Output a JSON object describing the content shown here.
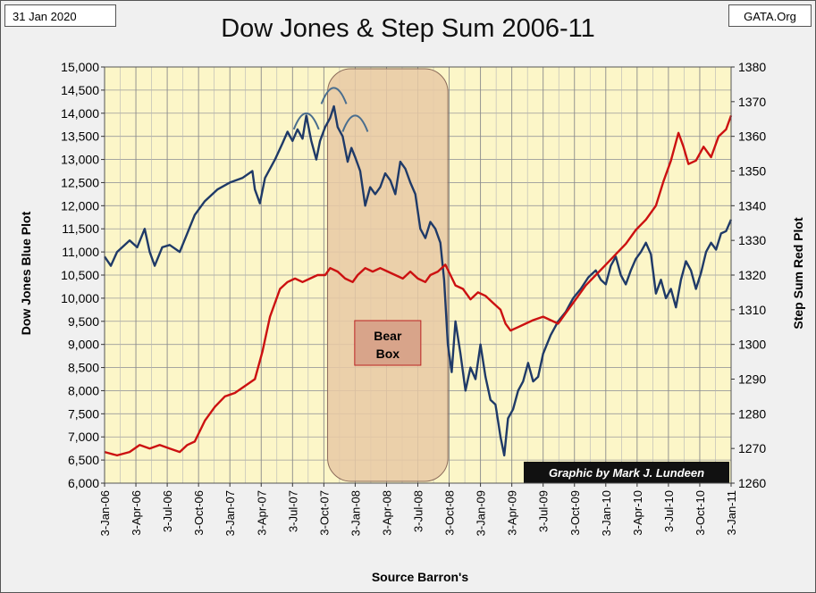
{
  "header": {
    "date": "31 Jan 2020",
    "site": "GATA.Org"
  },
  "chart_data": {
    "type": "line",
    "title": "Dow Jones & Step Sum 2006-11",
    "xlabel": "Source Barron's",
    "ylabel_left": "Dow Jones  Blue Plot",
    "ylabel_right": "Step Sum  Red Plot",
    "x_tick_labels": [
      "3-Jan-06",
      "3-Apr-06",
      "3-Jul-06",
      "3-Oct-06",
      "3-Jan-07",
      "3-Apr-07",
      "3-Jul-07",
      "3-Oct-07",
      "3-Jan-08",
      "3-Apr-08",
      "3-Jul-08",
      "3-Oct-08",
      "3-Jan-09",
      "3-Apr-09",
      "3-Jul-09",
      "3-Oct-09",
      "3-Jan-10",
      "3-Apr-10",
      "3-Jul-10",
      "3-Oct-10",
      "3-Jan-11"
    ],
    "ylim_left": [
      6000,
      15000
    ],
    "ylim_right": [
      1260,
      1380
    ],
    "left_ticks": [
      6000,
      6500,
      7000,
      7500,
      8000,
      8500,
      9000,
      9500,
      10000,
      10500,
      11000,
      11500,
      12000,
      12500,
      13000,
      13500,
      14000,
      14500,
      15000
    ],
    "left_tick_labels": [
      "6,000",
      "6,500",
      "7,000",
      "7,500",
      "8,000",
      "8,500",
      "9,000",
      "9,500",
      "10,000",
      "10,500",
      "11,000",
      "11,500",
      "12,000",
      "12,500",
      "13,000",
      "13,500",
      "14,000",
      "14,500",
      "15,000"
    ],
    "right_ticks": [
      1260,
      1270,
      1280,
      1290,
      1300,
      1310,
      1320,
      1330,
      1340,
      1350,
      1360,
      1370,
      1380
    ],
    "grid": true,
    "colors": {
      "dow": "#1f3a68",
      "stepsum": "#cc1111",
      "plot_bg": "#fcf6c8",
      "bear_box": "#e8c9a4"
    },
    "series": [
      {
        "name": "Dow Jones",
        "axis": "left",
        "points": [
          [
            0,
            10900
          ],
          [
            0.25,
            10700
          ],
          [
            0.5,
            11000
          ],
          [
            1,
            11250
          ],
          [
            1.3,
            11100
          ],
          [
            1.6,
            11500
          ],
          [
            1.8,
            11000
          ],
          [
            2,
            10700
          ],
          [
            2.3,
            11100
          ],
          [
            2.6,
            11150
          ],
          [
            3,
            11000
          ],
          [
            3.3,
            11400
          ],
          [
            3.6,
            11800
          ],
          [
            4,
            12100
          ],
          [
            4.5,
            12350
          ],
          [
            5,
            12500
          ],
          [
            5.5,
            12600
          ],
          [
            5.9,
            12750
          ],
          [
            6,
            12350
          ],
          [
            6.2,
            12050
          ],
          [
            6.4,
            12600
          ],
          [
            6.8,
            13000
          ],
          [
            7.1,
            13350
          ],
          [
            7.3,
            13600
          ],
          [
            7.5,
            13400
          ],
          [
            7.7,
            13650
          ],
          [
            7.9,
            13450
          ],
          [
            8.05,
            13950
          ],
          [
            8.25,
            13400
          ],
          [
            8.45,
            13000
          ],
          [
            8.6,
            13400
          ],
          [
            8.8,
            13700
          ],
          [
            9,
            13900
          ],
          [
            9.15,
            14150
          ],
          [
            9.3,
            13700
          ],
          [
            9.5,
            13500
          ],
          [
            9.7,
            12950
          ],
          [
            9.85,
            13250
          ],
          [
            10,
            13050
          ],
          [
            10.2,
            12750
          ],
          [
            10.4,
            12000
          ],
          [
            10.6,
            12400
          ],
          [
            10.8,
            12250
          ],
          [
            11,
            12400
          ],
          [
            11.2,
            12700
          ],
          [
            11.4,
            12550
          ],
          [
            11.6,
            12250
          ],
          [
            11.8,
            12950
          ],
          [
            12,
            12800
          ],
          [
            12.2,
            12500
          ],
          [
            12.4,
            12250
          ],
          [
            12.6,
            11500
          ],
          [
            12.8,
            11300
          ],
          [
            13,
            11650
          ],
          [
            13.2,
            11500
          ],
          [
            13.4,
            11200
          ],
          [
            13.55,
            10400
          ],
          [
            13.7,
            9000
          ],
          [
            13.85,
            8400
          ],
          [
            14,
            9500
          ],
          [
            14.2,
            8800
          ],
          [
            14.4,
            8000
          ],
          [
            14.6,
            8500
          ],
          [
            14.8,
            8250
          ],
          [
            15,
            9000
          ],
          [
            15.2,
            8300
          ],
          [
            15.4,
            7800
          ],
          [
            15.6,
            7700
          ],
          [
            15.8,
            7000
          ],
          [
            15.95,
            6600
          ],
          [
            16.1,
            7400
          ],
          [
            16.3,
            7600
          ],
          [
            16.5,
            8000
          ],
          [
            16.7,
            8200
          ],
          [
            16.9,
            8600
          ],
          [
            17.1,
            8200
          ],
          [
            17.3,
            8300
          ],
          [
            17.5,
            8800
          ],
          [
            17.8,
            9200
          ],
          [
            18.1,
            9500
          ],
          [
            18.4,
            9700
          ],
          [
            18.7,
            10000
          ],
          [
            19,
            10200
          ],
          [
            19.3,
            10450
          ],
          [
            19.6,
            10600
          ],
          [
            19.8,
            10400
          ],
          [
            20,
            10300
          ],
          [
            20.2,
            10700
          ],
          [
            20.4,
            10900
          ],
          [
            20.6,
            10500
          ],
          [
            20.8,
            10300
          ],
          [
            21,
            10600
          ],
          [
            21.2,
            10850
          ],
          [
            21.4,
            11000
          ],
          [
            21.6,
            11200
          ],
          [
            21.8,
            10950
          ],
          [
            22,
            10100
          ],
          [
            22.2,
            10400
          ],
          [
            22.4,
            10000
          ],
          [
            22.6,
            10200
          ],
          [
            22.8,
            9800
          ],
          [
            23,
            10400
          ],
          [
            23.2,
            10800
          ],
          [
            23.4,
            10600
          ],
          [
            23.6,
            10200
          ],
          [
            23.8,
            10550
          ],
          [
            24,
            11000
          ],
          [
            24.2,
            11200
          ],
          [
            24.4,
            11050
          ],
          [
            24.6,
            11400
          ],
          [
            24.8,
            11450
          ],
          [
            25,
            11700
          ]
        ]
      },
      {
        "name": "Step Sum",
        "axis": "right",
        "points": [
          [
            0,
            1269
          ],
          [
            0.5,
            1268
          ],
          [
            1,
            1269
          ],
          [
            1.4,
            1271
          ],
          [
            1.8,
            1270
          ],
          [
            2.2,
            1271
          ],
          [
            2.6,
            1270
          ],
          [
            3,
            1269
          ],
          [
            3.3,
            1271
          ],
          [
            3.6,
            1272
          ],
          [
            4,
            1278
          ],
          [
            4.4,
            1282
          ],
          [
            4.8,
            1285
          ],
          [
            5.2,
            1286
          ],
          [
            5.6,
            1288
          ],
          [
            6,
            1290
          ],
          [
            6.3,
            1298
          ],
          [
            6.6,
            1308
          ],
          [
            7,
            1316
          ],
          [
            7.3,
            1318
          ],
          [
            7.6,
            1319
          ],
          [
            7.9,
            1318
          ],
          [
            8.2,
            1319
          ],
          [
            8.5,
            1320
          ],
          [
            8.8,
            1320
          ],
          [
            9,
            1322
          ],
          [
            9.3,
            1321
          ],
          [
            9.6,
            1319
          ],
          [
            9.9,
            1318
          ],
          [
            10.1,
            1320
          ],
          [
            10.4,
            1322
          ],
          [
            10.7,
            1321
          ],
          [
            11,
            1322
          ],
          [
            11.3,
            1321
          ],
          [
            11.6,
            1320
          ],
          [
            11.9,
            1319
          ],
          [
            12.2,
            1321
          ],
          [
            12.5,
            1319
          ],
          [
            12.8,
            1318
          ],
          [
            13,
            1320
          ],
          [
            13.3,
            1321
          ],
          [
            13.6,
            1323
          ],
          [
            13.8,
            1320
          ],
          [
            14,
            1317
          ],
          [
            14.3,
            1316
          ],
          [
            14.6,
            1313
          ],
          [
            14.9,
            1315
          ],
          [
            15.2,
            1314
          ],
          [
            15.5,
            1312
          ],
          [
            15.8,
            1310
          ],
          [
            16,
            1306
          ],
          [
            16.2,
            1304
          ],
          [
            16.5,
            1305
          ],
          [
            16.8,
            1306
          ],
          [
            17.1,
            1307
          ],
          [
            17.5,
            1308
          ],
          [
            17.8,
            1307
          ],
          [
            18.1,
            1306
          ],
          [
            18.4,
            1309
          ],
          [
            18.8,
            1313
          ],
          [
            19.2,
            1317
          ],
          [
            19.6,
            1320
          ],
          [
            20,
            1323
          ],
          [
            20.4,
            1326
          ],
          [
            20.8,
            1329
          ],
          [
            21.2,
            1333
          ],
          [
            21.6,
            1336
          ],
          [
            22,
            1340
          ],
          [
            22.3,
            1347
          ],
          [
            22.6,
            1353
          ],
          [
            22.9,
            1361
          ],
          [
            23.1,
            1357
          ],
          [
            23.3,
            1352
          ],
          [
            23.6,
            1353
          ],
          [
            23.9,
            1357
          ],
          [
            24.2,
            1354
          ],
          [
            24.5,
            1360
          ],
          [
            24.8,
            1362
          ],
          [
            25,
            1366
          ]
        ]
      }
    ],
    "annotations": {
      "bear_box_x_range": [
        8.9,
        13.7
      ],
      "bear_box_label": [
        "Bear",
        "Box"
      ],
      "credit": "Graphic by Mark J. Lundeen",
      "peak_arches_x": [
        8.05,
        9.15,
        10.0
      ]
    }
  }
}
